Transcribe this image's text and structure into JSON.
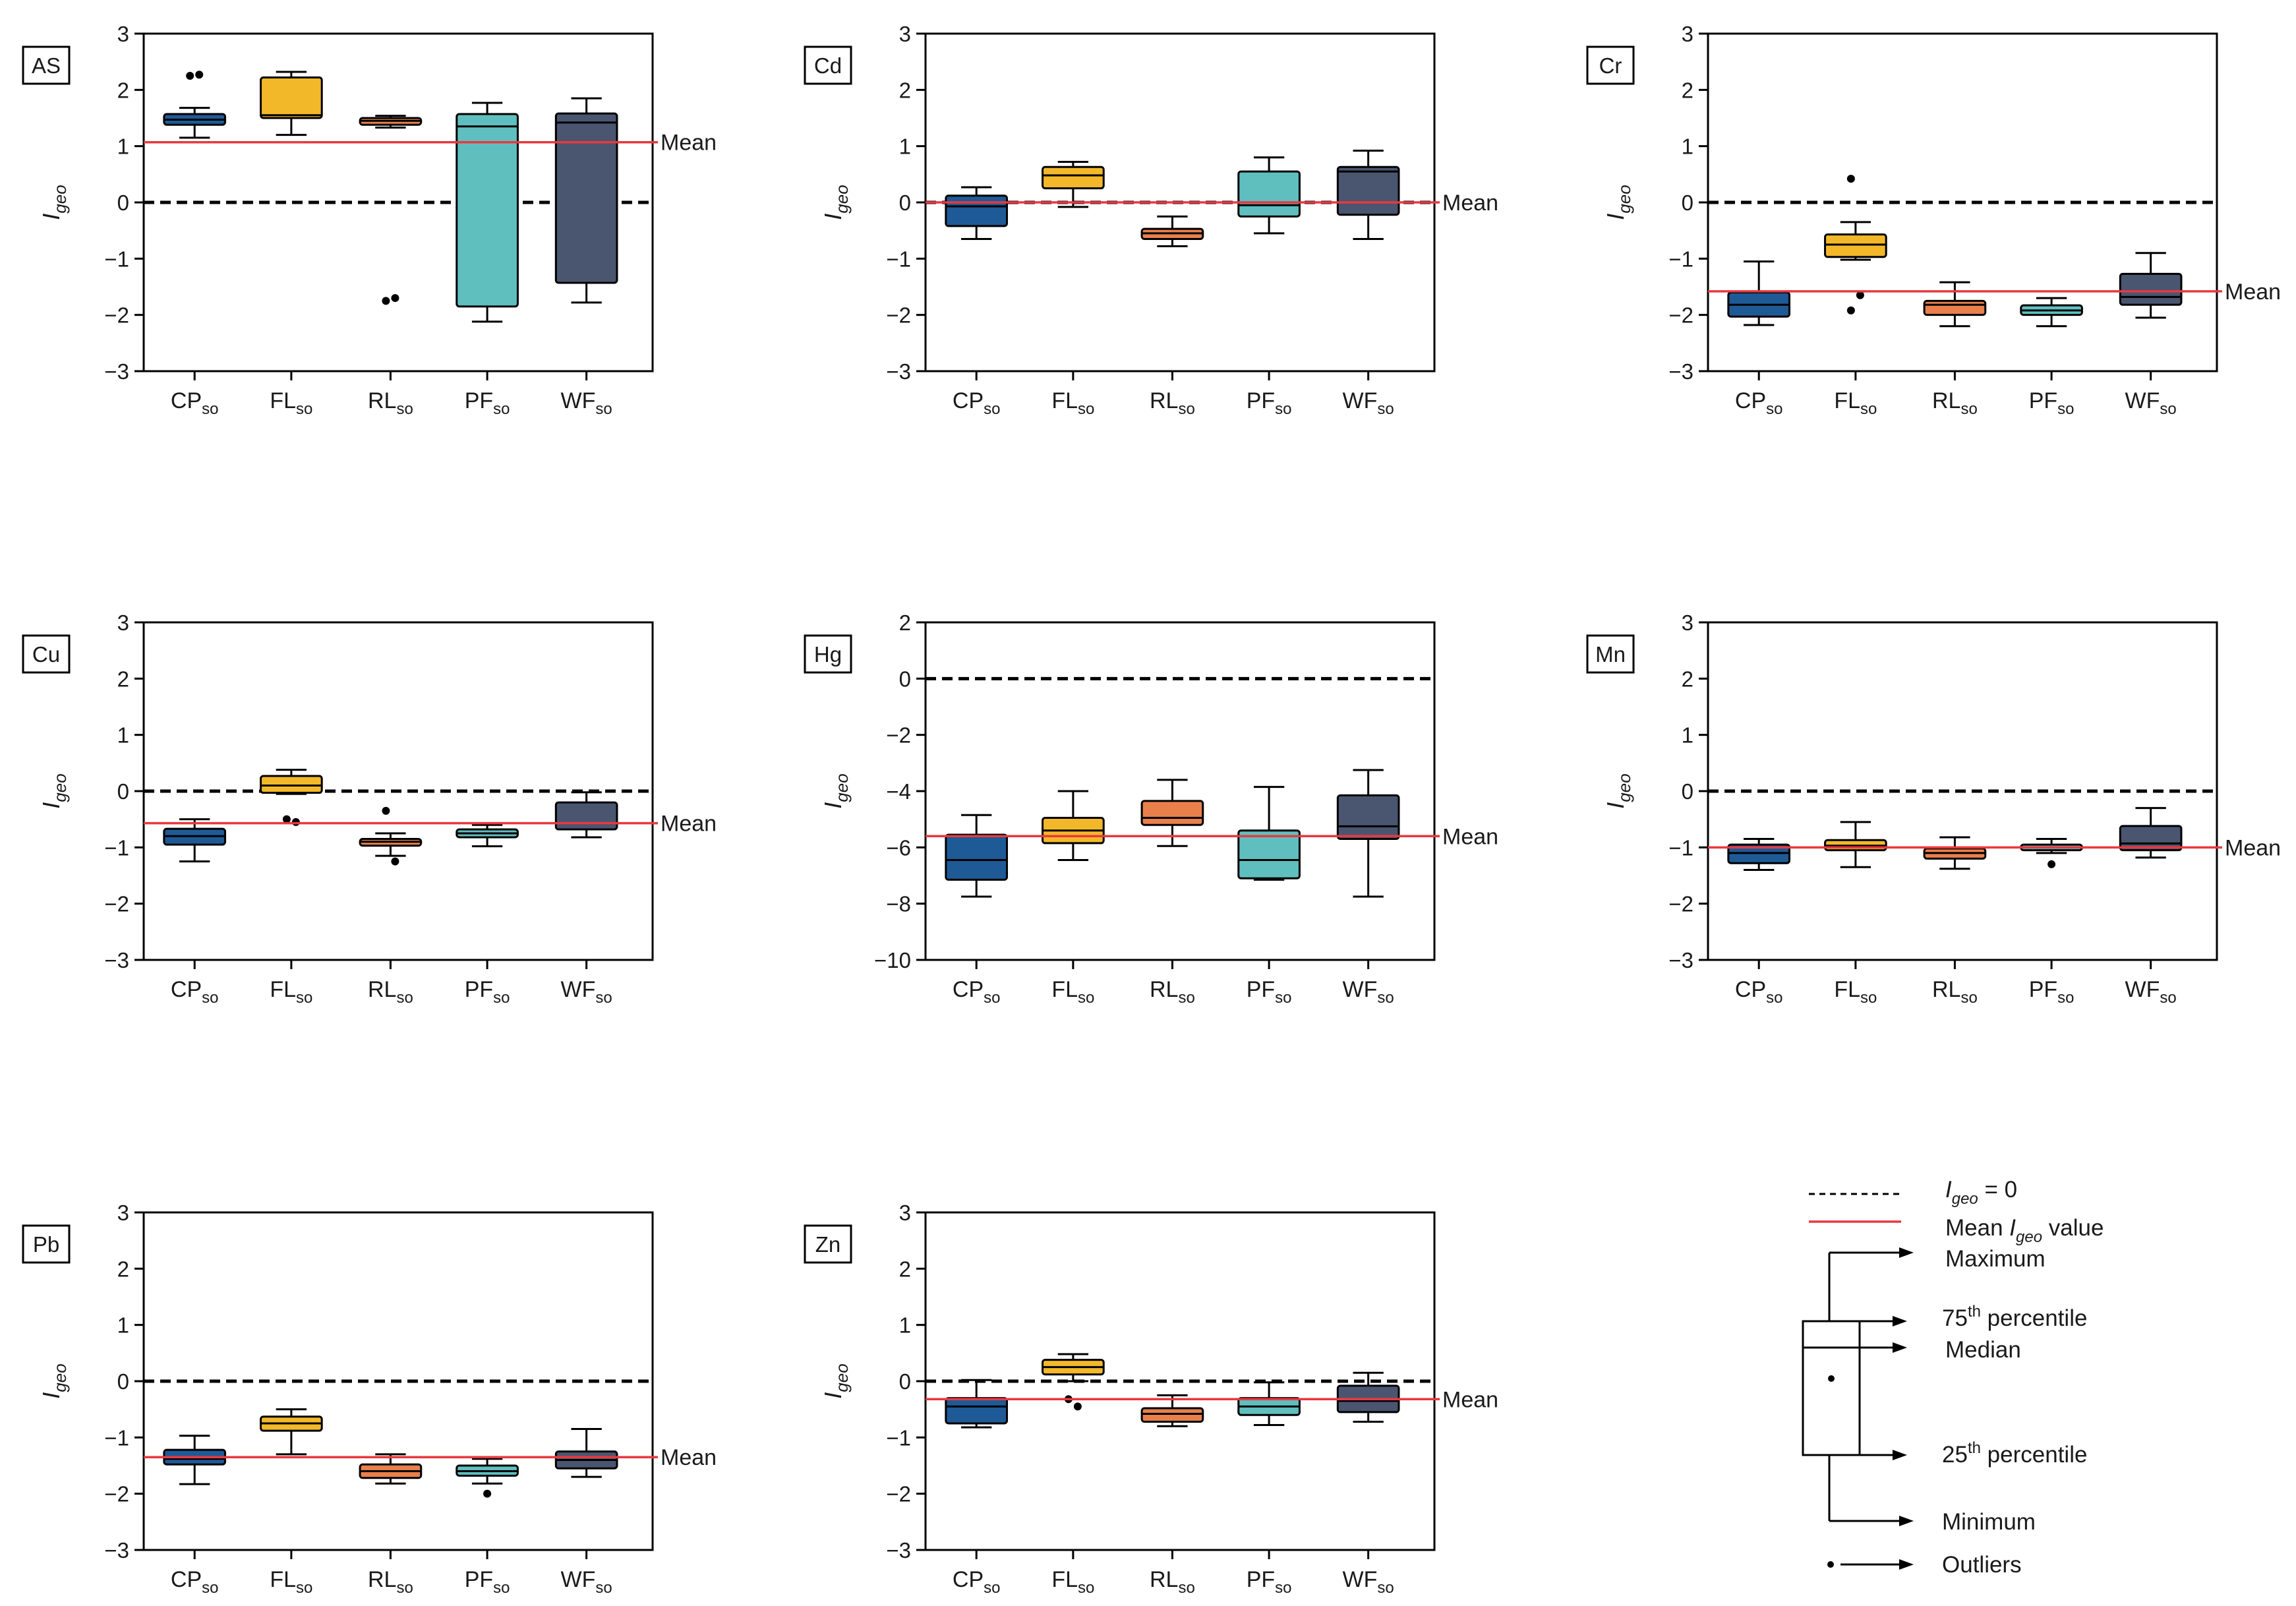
{
  "categories": [
    "CP",
    "FL",
    "RL",
    "PF",
    "WF"
  ],
  "category_subscript": "so",
  "y_axis_label": "I",
  "y_axis_label_subscript": "geo",
  "mean_label": "Mean",
  "colors": {
    "CP": "#1e5a96",
    "FL": "#f3b82a",
    "RL": "#e9804c",
    "PF": "#5fbfbf",
    "WF": "#4a5670",
    "mean_line": "#e8393f",
    "zero_line": "#000000",
    "axis": "#000000"
  },
  "legend": {
    "zero_line": {
      "main": "I",
      "sub": "geo",
      "rest": " = 0"
    },
    "mean_line": {
      "pre": "Mean ",
      "main": "I",
      "sub": "geo",
      "rest": "  value"
    },
    "maximum": "Maximum",
    "p75": {
      "pre": "75",
      "sup": "th",
      "rest": " percentile"
    },
    "median": "Median",
    "p25": {
      "pre": "25",
      "sup": "th",
      "rest": " percentile"
    },
    "minimum": "Minimum",
    "outliers": "Outliers"
  },
  "chart_data": [
    {
      "type": "box",
      "label": "AS",
      "ylim": [
        -3,
        3
      ],
      "yticks": [
        -3,
        -2,
        -1,
        0,
        1,
        2,
        3
      ],
      "mean": 1.07,
      "mean_label_shown": true,
      "boxes": [
        {
          "cat": "CP",
          "min": 1.15,
          "q1": 1.38,
          "median": 1.47,
          "q3": 1.57,
          "max": 1.68,
          "outliers": [
            2.25,
            2.27
          ]
        },
        {
          "cat": "FL",
          "min": 1.2,
          "q1": 1.5,
          "median": 1.55,
          "q3": 2.22,
          "max": 2.32,
          "outliers": []
        },
        {
          "cat": "RL",
          "min": 1.33,
          "q1": 1.38,
          "median": 1.45,
          "q3": 1.5,
          "max": 1.54,
          "outliers": [
            -1.75,
            -1.7
          ]
        },
        {
          "cat": "PF",
          "min": -2.12,
          "q1": -1.85,
          "median": 1.35,
          "q3": 1.57,
          "max": 1.77,
          "outliers": []
        },
        {
          "cat": "WF",
          "min": -1.78,
          "q1": -1.43,
          "median": 1.42,
          "q3": 1.58,
          "max": 1.85,
          "outliers": []
        }
      ]
    },
    {
      "type": "box",
      "label": "Cd",
      "ylim": [
        -3,
        3
      ],
      "yticks": [
        -3,
        -2,
        -1,
        0,
        1,
        2,
        3
      ],
      "mean": 0.0,
      "mean_label_shown": true,
      "boxes": [
        {
          "cat": "CP",
          "min": -0.65,
          "q1": -0.42,
          "median": -0.07,
          "q3": 0.12,
          "max": 0.27,
          "outliers": []
        },
        {
          "cat": "FL",
          "min": -0.08,
          "q1": 0.25,
          "median": 0.48,
          "q3": 0.63,
          "max": 0.72,
          "outliers": []
        },
        {
          "cat": "RL",
          "min": -0.78,
          "q1": -0.65,
          "median": -0.55,
          "q3": -0.47,
          "max": -0.25,
          "outliers": []
        },
        {
          "cat": "PF",
          "min": -0.55,
          "q1": -0.25,
          "median": -0.05,
          "q3": 0.55,
          "max": 0.8,
          "outliers": []
        },
        {
          "cat": "WF",
          "min": -0.65,
          "q1": -0.22,
          "median": 0.55,
          "q3": 0.63,
          "max": 0.92,
          "outliers": []
        }
      ]
    },
    {
      "type": "box",
      "label": "Cr",
      "ylim": [
        -3,
        3
      ],
      "yticks": [
        -3,
        -2,
        -1,
        0,
        1,
        2,
        3
      ],
      "mean": -1.58,
      "mean_label_shown": true,
      "boxes": [
        {
          "cat": "CP",
          "min": -2.18,
          "q1": -2.03,
          "median": -1.82,
          "q3": -1.6,
          "max": -1.05,
          "outliers": []
        },
        {
          "cat": "FL",
          "min": -1.02,
          "q1": -0.97,
          "median": -0.75,
          "q3": -0.57,
          "max": -0.35,
          "outliers": [
            0.42,
            -1.65,
            -1.92
          ]
        },
        {
          "cat": "RL",
          "min": -2.2,
          "q1": -2.0,
          "median": -1.82,
          "q3": -1.75,
          "max": -1.42,
          "outliers": []
        },
        {
          "cat": "PF",
          "min": -2.2,
          "q1": -2.0,
          "median": -1.92,
          "q3": -1.83,
          "max": -1.7,
          "outliers": []
        },
        {
          "cat": "WF",
          "min": -2.05,
          "q1": -1.82,
          "median": -1.68,
          "q3": -1.27,
          "max": -0.9,
          "outliers": []
        }
      ]
    },
    {
      "type": "box",
      "label": "Cu",
      "ylim": [
        -3,
        3
      ],
      "yticks": [
        -3,
        -2,
        -1,
        0,
        1,
        2,
        3
      ],
      "mean": -0.57,
      "mean_label_shown": true,
      "boxes": [
        {
          "cat": "CP",
          "min": -1.25,
          "q1": -0.95,
          "median": -0.8,
          "q3": -0.67,
          "max": -0.5,
          "outliers": []
        },
        {
          "cat": "FL",
          "min": -0.05,
          "q1": -0.03,
          "median": 0.1,
          "q3": 0.27,
          "max": 0.38,
          "outliers": [
            -0.5,
            -0.55
          ]
        },
        {
          "cat": "RL",
          "min": -1.15,
          "q1": -0.97,
          "median": -0.9,
          "q3": -0.85,
          "max": -0.75,
          "outliers": [
            -0.35,
            -1.25
          ]
        },
        {
          "cat": "PF",
          "min": -0.98,
          "q1": -0.82,
          "median": -0.75,
          "q3": -0.68,
          "max": -0.6,
          "outliers": []
        },
        {
          "cat": "WF",
          "min": -0.82,
          "q1": -0.68,
          "median": -0.57,
          "q3": -0.2,
          "max": -0.02,
          "outliers": []
        }
      ]
    },
    {
      "type": "box",
      "label": "Hg",
      "ylim": [
        -10,
        2
      ],
      "yticks": [
        -10,
        -8,
        -6,
        -4,
        -2,
        0,
        2
      ],
      "mean": -5.6,
      "mean_label_shown": true,
      "boxes": [
        {
          "cat": "CP",
          "min": -7.75,
          "q1": -7.15,
          "median": -6.45,
          "q3": -5.55,
          "max": -4.85,
          "outliers": []
        },
        {
          "cat": "FL",
          "min": -6.45,
          "q1": -5.85,
          "median": -5.4,
          "q3": -4.95,
          "max": -4.0,
          "outliers": []
        },
        {
          "cat": "RL",
          "min": -5.95,
          "q1": -5.2,
          "median": -4.95,
          "q3": -4.35,
          "max": -3.6,
          "outliers": []
        },
        {
          "cat": "PF",
          "min": -7.15,
          "q1": -7.1,
          "median": -6.45,
          "q3": -5.4,
          "max": -3.85,
          "outliers": []
        },
        {
          "cat": "WF",
          "min": -7.75,
          "q1": -5.7,
          "median": -5.25,
          "q3": -4.15,
          "max": -3.25,
          "outliers": []
        }
      ]
    },
    {
      "type": "box",
      "label": "Mn",
      "ylim": [
        -3,
        3
      ],
      "yticks": [
        -3,
        -2,
        -1,
        0,
        1,
        2,
        3
      ],
      "mean": -1.0,
      "mean_label_shown": true,
      "boxes": [
        {
          "cat": "CP",
          "min": -1.4,
          "q1": -1.28,
          "median": -1.1,
          "q3": -0.95,
          "max": -0.85,
          "outliers": []
        },
        {
          "cat": "FL",
          "min": -1.35,
          "q1": -1.05,
          "median": -0.97,
          "q3": -0.87,
          "max": -0.55,
          "outliers": []
        },
        {
          "cat": "RL",
          "min": -1.38,
          "q1": -1.2,
          "median": -1.1,
          "q3": -1.02,
          "max": -0.82,
          "outliers": []
        },
        {
          "cat": "PF",
          "min": -1.1,
          "q1": -1.05,
          "median": -1.0,
          "q3": -0.95,
          "max": -0.85,
          "outliers": [
            -1.3
          ]
        },
        {
          "cat": "WF",
          "min": -1.18,
          "q1": -1.05,
          "median": -0.93,
          "q3": -0.62,
          "max": -0.3,
          "outliers": []
        }
      ]
    },
    {
      "type": "box",
      "label": "Pb",
      "ylim": [
        -3,
        3
      ],
      "yticks": [
        -3,
        -2,
        -1,
        0,
        1,
        2,
        3
      ],
      "mean": -1.35,
      "mean_label_shown": true,
      "boxes": [
        {
          "cat": "CP",
          "min": -1.83,
          "q1": -1.48,
          "median": -1.38,
          "q3": -1.22,
          "max": -0.97,
          "outliers": []
        },
        {
          "cat": "FL",
          "min": -1.3,
          "q1": -0.88,
          "median": -0.75,
          "q3": -0.63,
          "max": -0.5,
          "outliers": []
        },
        {
          "cat": "RL",
          "min": -1.82,
          "q1": -1.72,
          "median": -1.6,
          "q3": -1.48,
          "max": -1.3,
          "outliers": []
        },
        {
          "cat": "PF",
          "min": -1.82,
          "q1": -1.68,
          "median": -1.6,
          "q3": -1.5,
          "max": -1.38,
          "outliers": [
            -2.0
          ]
        },
        {
          "cat": "WF",
          "min": -1.7,
          "q1": -1.55,
          "median": -1.4,
          "q3": -1.25,
          "max": -0.85,
          "outliers": []
        }
      ]
    },
    {
      "type": "box",
      "label": "Zn",
      "ylim": [
        -3,
        3
      ],
      "yticks": [
        -3,
        -2,
        -1,
        0,
        1,
        2,
        3
      ],
      "mean": -0.32,
      "mean_label_shown": true,
      "boxes": [
        {
          "cat": "CP",
          "min": -0.82,
          "q1": -0.75,
          "median": -0.45,
          "q3": -0.3,
          "max": 0.02,
          "outliers": []
        },
        {
          "cat": "FL",
          "min": 0.0,
          "q1": 0.12,
          "median": 0.25,
          "q3": 0.38,
          "max": 0.48,
          "outliers": [
            -0.32,
            -0.45
          ]
        },
        {
          "cat": "RL",
          "min": -0.8,
          "q1": -0.72,
          "median": -0.58,
          "q3": -0.48,
          "max": -0.25,
          "outliers": []
        },
        {
          "cat": "PF",
          "min": -0.78,
          "q1": -0.6,
          "median": -0.45,
          "q3": -0.3,
          "max": -0.02,
          "outliers": []
        },
        {
          "cat": "WF",
          "min": -0.72,
          "q1": -0.55,
          "median": -0.35,
          "q3": -0.08,
          "max": 0.15,
          "outliers": []
        }
      ]
    }
  ]
}
